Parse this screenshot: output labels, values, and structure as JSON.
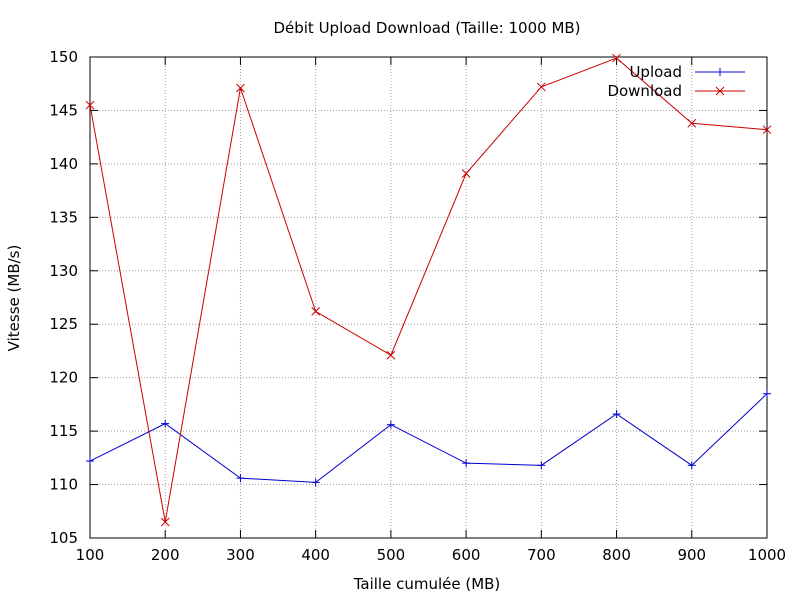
{
  "chart_data": {
    "type": "line",
    "title": "Débit Upload  Download (Taille: 1000 MB)",
    "xlabel": "Taille cumulée (MB)",
    "ylabel": "Vitesse (MB/s)",
    "x": [
      100,
      200,
      300,
      400,
      500,
      600,
      700,
      800,
      900,
      1000
    ],
    "xlim": [
      100,
      1000
    ],
    "ylim": [
      105,
      150
    ],
    "xticks": [
      100,
      200,
      300,
      400,
      500,
      600,
      700,
      800,
      900,
      1000
    ],
    "yticks": [
      105,
      110,
      115,
      120,
      125,
      130,
      135,
      140,
      145,
      150
    ],
    "grid": true,
    "legend_position": "top-right",
    "series": [
      {
        "name": "Upload",
        "color": "#0000cc",
        "marker": "plus",
        "values": [
          112.2,
          115.7,
          110.6,
          110.2,
          115.6,
          112.0,
          111.8,
          116.6,
          111.8,
          118.5
        ]
      },
      {
        "name": "Download",
        "color": "#cc0000",
        "marker": "cross",
        "values": [
          145.5,
          106.5,
          147.1,
          126.2,
          122.1,
          139.1,
          147.2,
          149.9,
          143.8,
          143.2
        ]
      }
    ]
  }
}
